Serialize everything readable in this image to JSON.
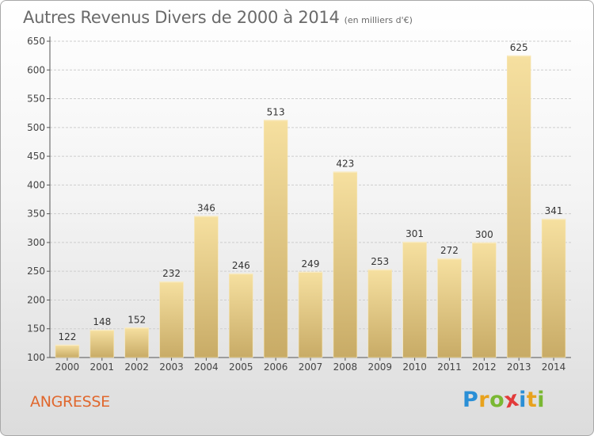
{
  "header": {
    "title": "Autres Revenus Divers de 2000 à 2014",
    "unit": "(en milliers d'€)"
  },
  "commune": "ANGRESSE",
  "brand": {
    "name": "Proxiti",
    "letters": [
      {
        "ch": "P",
        "color": "#2a8fd6"
      },
      {
        "ch": "r",
        "color": "#e8a21d"
      },
      {
        "ch": "o",
        "color": "#7ab833"
      },
      {
        "ch": "x",
        "color": "#e23a3a"
      },
      {
        "ch": "i",
        "color": "#2a8fd6"
      },
      {
        "ch": "t",
        "color": "#e8a21d"
      },
      {
        "ch": "i",
        "color": "#7ab833"
      }
    ]
  },
  "chart_data": {
    "type": "bar",
    "categories": [
      "2000",
      "2001",
      "2002",
      "2003",
      "2004",
      "2005",
      "2006",
      "2007",
      "2008",
      "2009",
      "2010",
      "2011",
      "2012",
      "2013",
      "2014"
    ],
    "values": [
      122,
      148,
      152,
      232,
      346,
      246,
      513,
      249,
      423,
      253,
      301,
      272,
      300,
      625,
      341
    ],
    "ylim": [
      100,
      650
    ],
    "yticks": [
      100,
      150,
      200,
      250,
      300,
      350,
      400,
      450,
      500,
      550,
      600,
      650
    ],
    "grid": true,
    "bar_color": "#ecd291"
  }
}
